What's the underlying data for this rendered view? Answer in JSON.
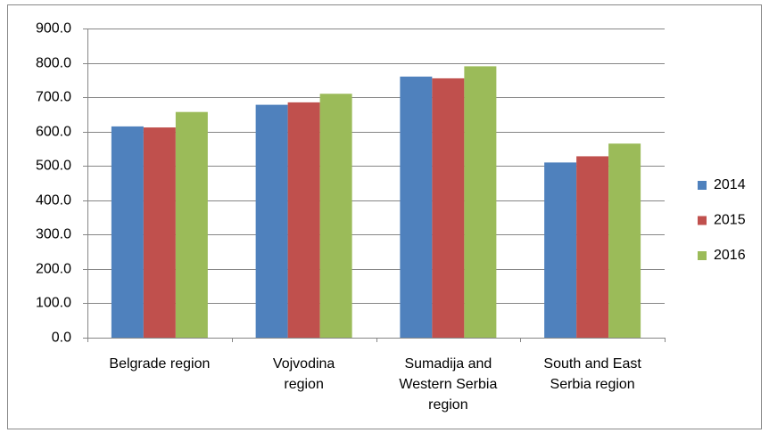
{
  "chart_data": {
    "type": "bar",
    "categories": [
      "Belgrade region",
      "Vojvodina region",
      "Sumadija and Western Serbia region",
      "South and East Serbia region"
    ],
    "series": [
      {
        "name": "2014",
        "color": "#4f81bd",
        "values": [
          615,
          678,
          760,
          510
        ]
      },
      {
        "name": "2015",
        "color": "#c0504d",
        "values": [
          612,
          685,
          755,
          528
        ]
      },
      {
        "name": "2016",
        "color": "#9bbb59",
        "values": [
          657,
          710,
          790,
          565
        ]
      }
    ],
    "ylim": [
      0,
      900
    ],
    "yticks": [
      {
        "value": 0,
        "label": "0.0"
      },
      {
        "value": 100,
        "label": "100.0"
      },
      {
        "value": 200,
        "label": "200.0"
      },
      {
        "value": 300,
        "label": "300.0"
      },
      {
        "value": 400,
        "label": "400.0"
      },
      {
        "value": 500,
        "label": "500.0"
      },
      {
        "value": 600,
        "label": "600.0"
      },
      {
        "value": 700,
        "label": "700.0"
      },
      {
        "value": 800,
        "label": "800.0"
      },
      {
        "value": 900,
        "label": "900.0"
      }
    ],
    "grid": true,
    "legend": "right"
  }
}
